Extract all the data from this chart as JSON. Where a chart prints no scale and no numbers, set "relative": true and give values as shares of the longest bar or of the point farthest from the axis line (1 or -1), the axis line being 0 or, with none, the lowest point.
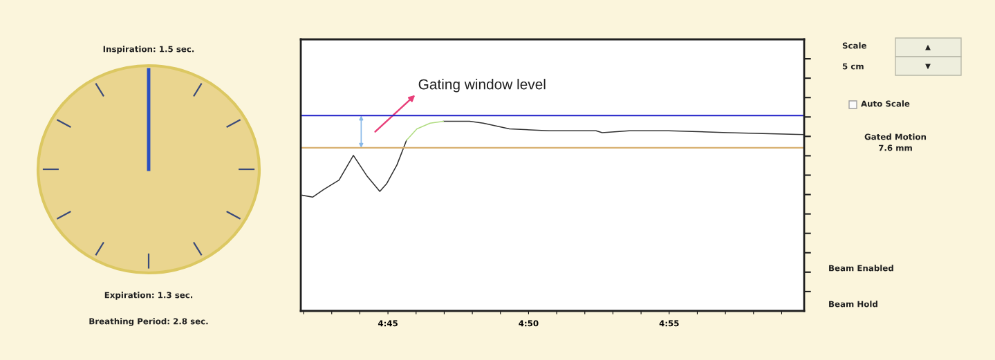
{
  "chart_data": [
    {
      "type": "other",
      "annotations": [
        "Inspiration: 1.5 sec.",
        "Expiration: 1.3 sec.",
        "Breathing Period: 2.8 sec."
      ]
    },
    {
      "type": "line",
      "relative": true,
      "x": [
        281.95,
        282.32,
        282.71,
        283.26,
        283.77,
        284.26,
        284.71,
        284.95,
        285.32,
        285.66,
        286.03,
        286.5,
        286.97,
        287.9,
        288.39,
        289.32,
        290.72,
        292.4,
        292.62,
        293.58,
        294.98,
        297.09,
        299.8
      ],
      "series": [
        {
          "color": "#303030",
          "values": [
            0.61,
            0.6,
            0.64,
            0.69,
            0.82,
            0.71,
            0.63,
            0.67,
            0.77,
            0.9,
            null,
            null,
            1.0,
            1.0,
            0.99,
            0.96,
            0.95,
            0.95,
            0.94,
            0.95,
            0.95,
            0.94,
            0.93
          ]
        },
        {
          "color": "#b0dc80",
          "x": [
            285.66,
            286.03,
            286.5,
            286.97
          ],
          "values": [
            0.9,
            0.96,
            0.99,
            1.0
          ]
        }
      ],
      "xlim": [
        281.9,
        299.8
      ],
      "xticks": [
        {
          "value": 282,
          "label": null
        },
        {
          "value": 283,
          "label": null
        },
        {
          "value": 284,
          "label": null
        },
        {
          "value": 285,
          "label": "4:45"
        },
        {
          "value": 286,
          "label": null
        },
        {
          "value": 287,
          "label": null
        },
        {
          "value": 288,
          "label": null
        },
        {
          "value": 289,
          "label": null
        },
        {
          "value": 290,
          "label": "4:50"
        },
        {
          "value": 291,
          "label": null
        },
        {
          "value": 292,
          "label": null
        },
        {
          "value": 293,
          "label": null
        },
        {
          "value": 294,
          "label": null
        },
        {
          "value": 295,
          "label": "4:55"
        },
        {
          "value": 296,
          "label": null
        },
        {
          "value": 297,
          "label": null
        },
        {
          "value": 298,
          "label": null
        },
        {
          "value": 299,
          "label": null
        }
      ],
      "ref_lines": [
        {
          "axis": "y",
          "value": 1.03,
          "color": "#2020c8"
        },
        {
          "axis": "y",
          "value": 0.86,
          "color": "#d8b070"
        }
      ],
      "annotations": [
        "Gating window level"
      ],
      "grid": false,
      "legend": false
    },
    {
      "type": "other",
      "annotations": [
        "Scale",
        "5 cm",
        "Auto Scale",
        "Gated Motion",
        "7.6 mm",
        "Beam Enabled",
        "Beam Hold"
      ]
    }
  ]
}
